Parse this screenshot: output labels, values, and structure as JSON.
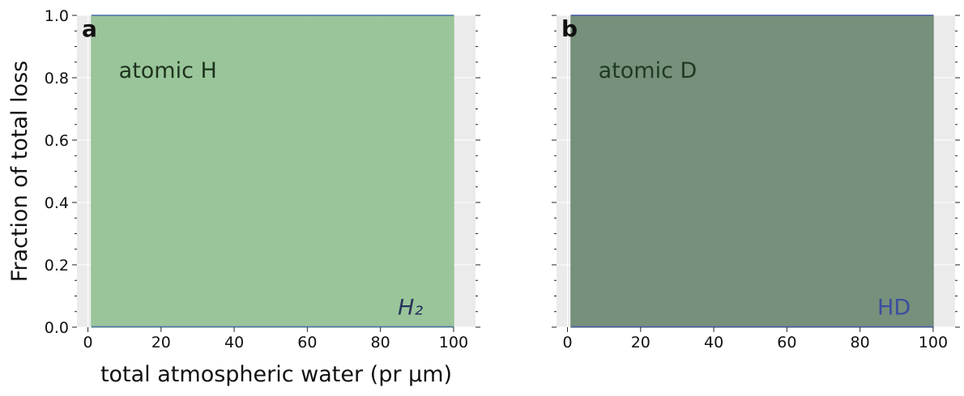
{
  "chart_data": [
    {
      "type": "area",
      "panel_label": "a",
      "xlabel": "total atmospheric water (pr μm)",
      "ylabel": "Fraction of total loss",
      "xlim": [
        -3,
        106
      ],
      "ylim": [
        0,
        1
      ],
      "x_ticks": [
        "0",
        "20",
        "40",
        "60",
        "80",
        "100"
      ],
      "y_ticks": [
        "0.0",
        "0.2",
        "0.4",
        "0.6",
        "0.8",
        "1.0"
      ],
      "grid": true,
      "x": [
        1,
        100
      ],
      "series": [
        {
          "name": "atomic H",
          "values": [
            1.0,
            1.0
          ],
          "color": "#96c396"
        },
        {
          "name": "H₂",
          "values": [
            0.0,
            0.0
          ],
          "color": "#4c72b0"
        }
      ],
      "annotations": [
        {
          "text": "atomic H",
          "color": "#1d331d"
        },
        {
          "text": "H₂",
          "color": "#27335a"
        }
      ],
      "background_color": "#ebebeb"
    },
    {
      "type": "area",
      "panel_label": "b",
      "xlabel": "",
      "ylabel": "",
      "xlim": [
        -3,
        106
      ],
      "ylim": [
        0,
        1
      ],
      "x_ticks": [
        "0",
        "20",
        "40",
        "60",
        "80",
        "100"
      ],
      "y_ticks": [],
      "grid": true,
      "x": [
        1,
        100
      ],
      "series": [
        {
          "name": "atomic D",
          "values": [
            1.0,
            1.0
          ],
          "color": "#708b75"
        },
        {
          "name": "HD",
          "values": [
            0.0,
            0.0
          ],
          "color": "#4c5cad"
        }
      ],
      "annotations": [
        {
          "text": "atomic D",
          "color": "#1d3a22"
        },
        {
          "text": "HD",
          "color": "#3c4ea0"
        }
      ],
      "background_color": "#ebebeb"
    }
  ]
}
